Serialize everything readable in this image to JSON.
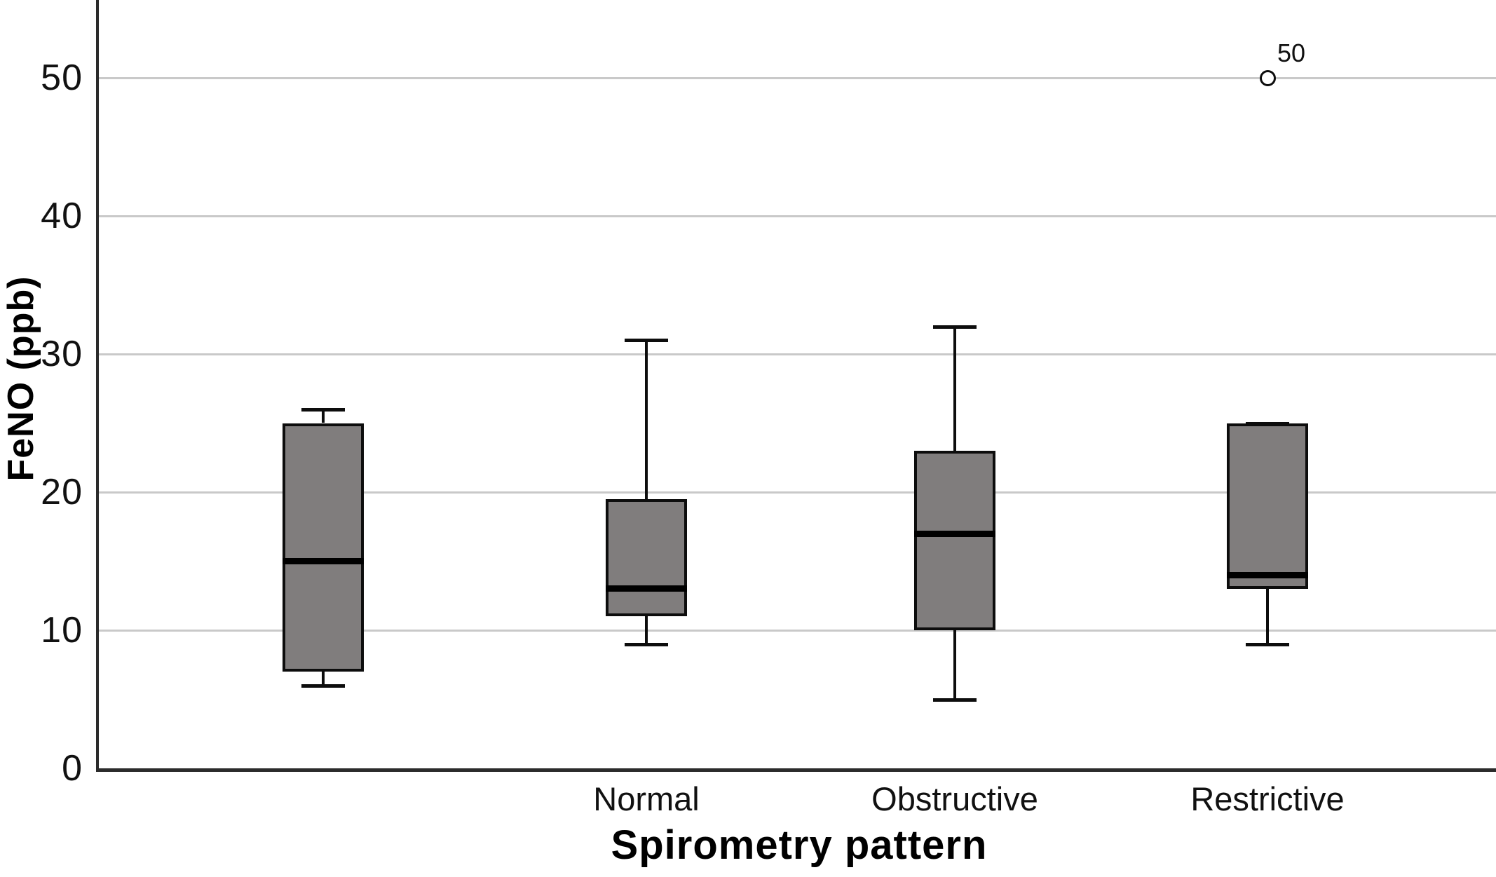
{
  "chart_data": {
    "type": "box",
    "title": "",
    "xlabel": "Spirometry pattern",
    "ylabel": "FeNO (ppb)",
    "ylim": [
      0,
      55.5
    ],
    "yticks": [
      0,
      10,
      20,
      30,
      40,
      50
    ],
    "grid": "horizontal-gridlines-at-each-ytick",
    "legend": "none",
    "categories": [
      "",
      "Normal",
      "Obstructive",
      "Restrictive"
    ],
    "boxes": [
      {
        "category": "",
        "whisker_low": 6,
        "q1": 7,
        "median": 15,
        "q3": 25,
        "whisker_high": 26,
        "outliers": []
      },
      {
        "category": "Normal",
        "whisker_low": 9,
        "q1": 11,
        "median": 13,
        "q3": 19.5,
        "whisker_high": 31,
        "outliers": []
      },
      {
        "category": "Obstructive",
        "whisker_low": 5,
        "q1": 10,
        "median": 17,
        "q3": 23,
        "whisker_high": 32,
        "outliers": []
      },
      {
        "category": "Restrictive",
        "whisker_low": 9,
        "q1": 13,
        "median": 14,
        "q3": 25,
        "whisker_high": 25,
        "outliers": [
          {
            "value": 50,
            "label": "50"
          }
        ]
      }
    ],
    "colors": {
      "box_fill": "#807d7d",
      "box_border": "#0d0d0d",
      "median": "#000000",
      "gridline": "#c9c9c9",
      "axis": "#2b2b2b",
      "background": "#ffffff"
    }
  }
}
